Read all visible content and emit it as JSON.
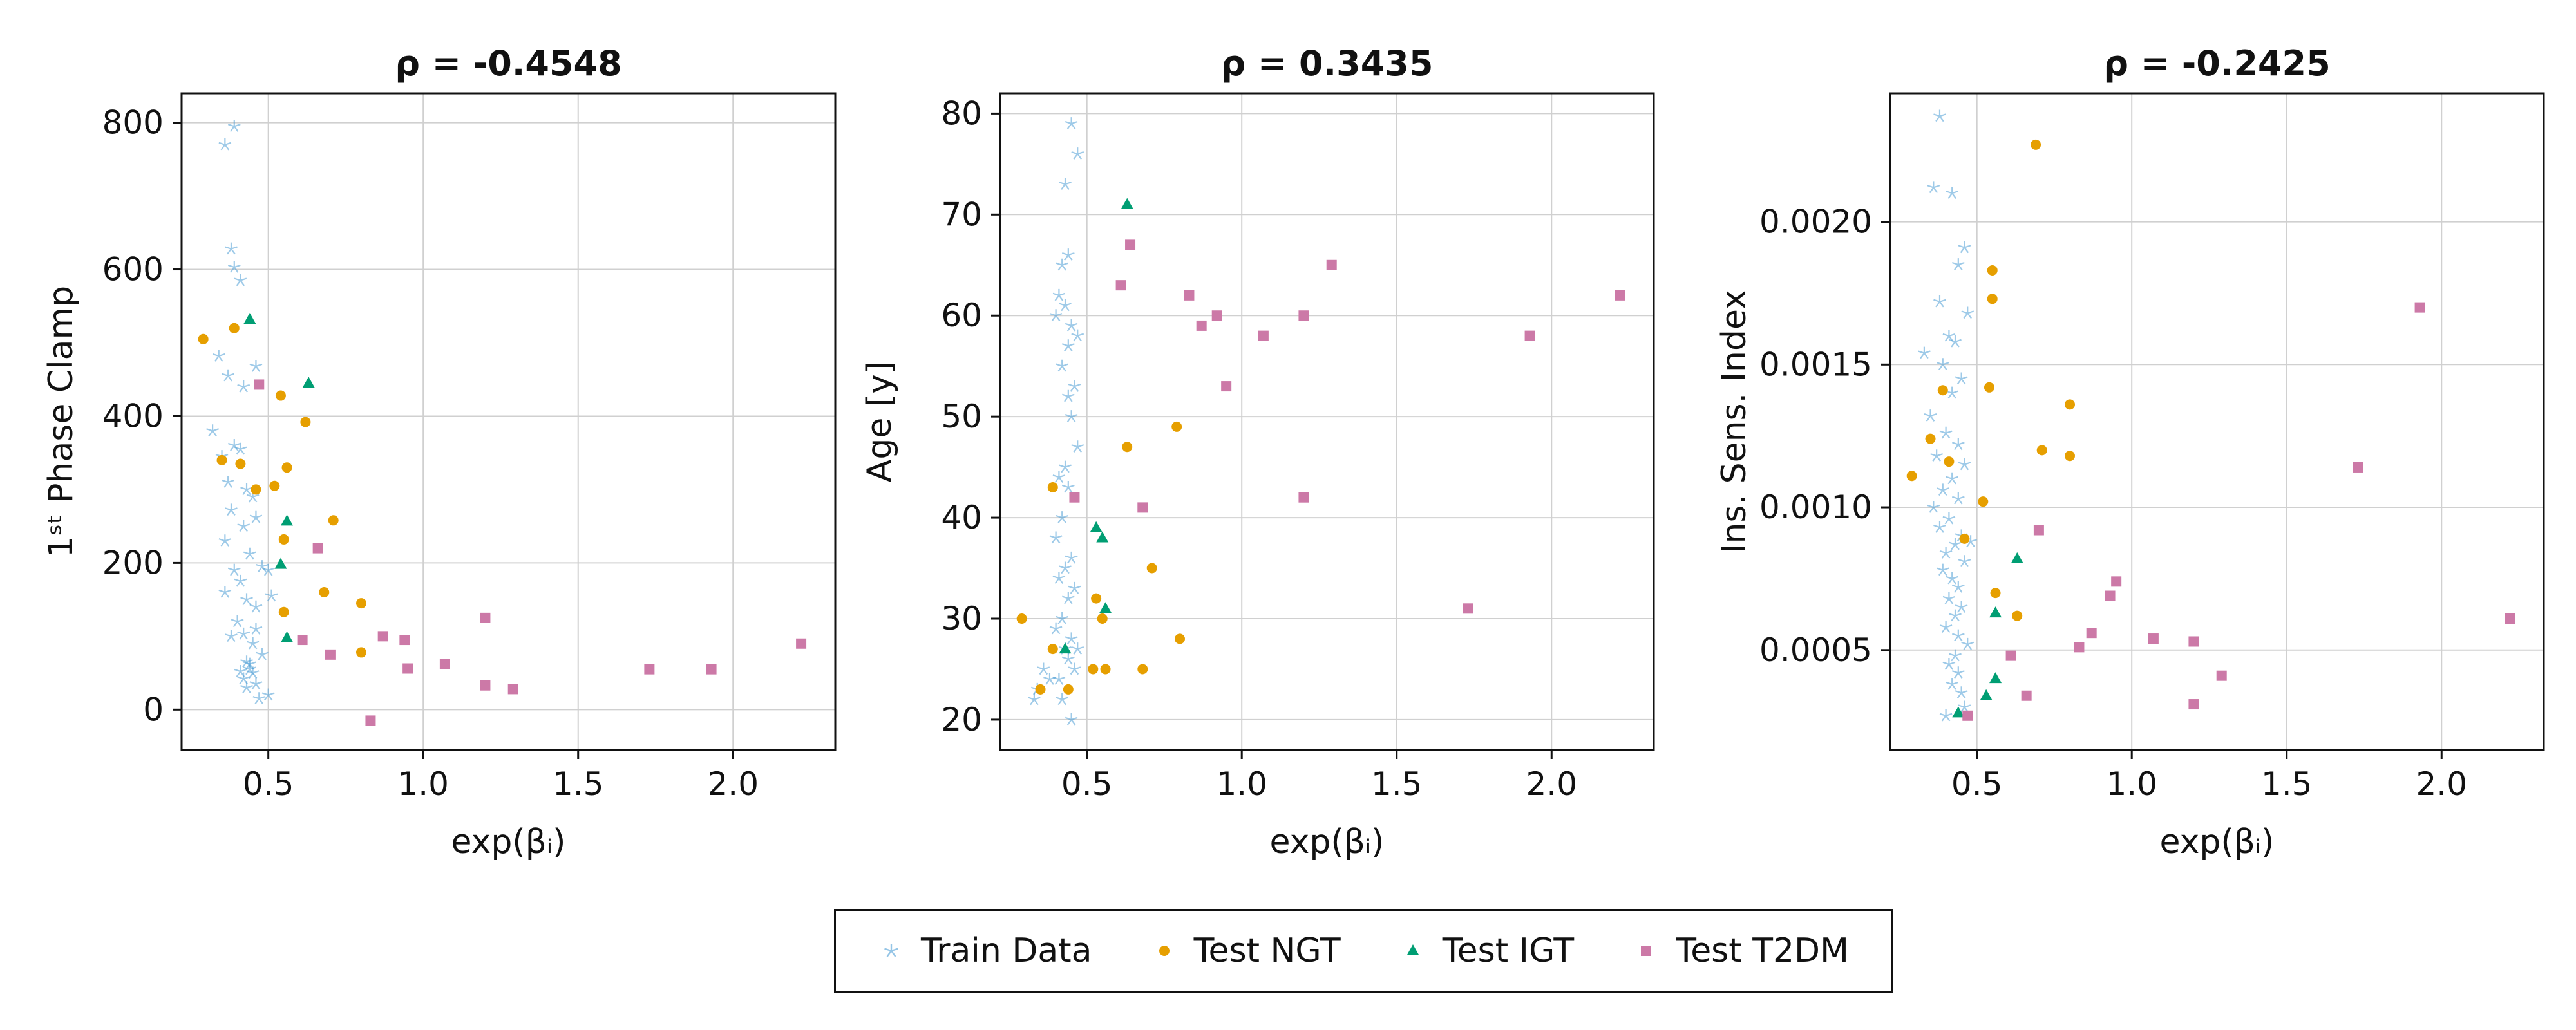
{
  "colors": {
    "train": "#4f9fd6",
    "ngt": "#e69f00",
    "igt": "#009e73",
    "t2dm": "#cc79a7",
    "grid": "#d0d0d0",
    "axis": "#111111"
  },
  "legend": {
    "items": [
      {
        "label": "Train Data",
        "marker": "star",
        "color": "#4f9fd6"
      },
      {
        "label": "Test NGT",
        "marker": "circle",
        "color": "#e69f00"
      },
      {
        "label": "Test IGT",
        "marker": "triangle",
        "color": "#009e73"
      },
      {
        "label": "Test T2DM",
        "marker": "square",
        "color": "#cc79a7"
      }
    ]
  },
  "chart_data": [
    {
      "type": "scatter",
      "title": "ρ = -0.4548",
      "xlabel": "exp(βᵢ)",
      "ylabel": "1ˢᵗ Phase Clamp",
      "xlim": [
        0.22,
        2.33
      ],
      "ylim": [
        -55,
        840
      ],
      "xticks": [
        0.5,
        1.0,
        1.5,
        2.0
      ],
      "xtick_labels": [
        "0.5",
        "1.0",
        "1.5",
        "2.0"
      ],
      "yticks": [
        0,
        200,
        400,
        600,
        800
      ],
      "ytick_labels": [
        "0",
        "200",
        "400",
        "600",
        "800"
      ],
      "grid": true,
      "series": [
        {
          "name": "Train Data",
          "marker": "star",
          "points": [
            [
              0.39,
              795
            ],
            [
              0.36,
              770
            ],
            [
              0.38,
              628
            ],
            [
              0.39,
              603
            ],
            [
              0.41,
              585
            ],
            [
              0.32,
              380
            ],
            [
              0.34,
              482
            ],
            [
              0.37,
              455
            ],
            [
              0.42,
              440
            ],
            [
              0.46,
              468
            ],
            [
              0.35,
              345
            ],
            [
              0.39,
              360
            ],
            [
              0.41,
              355
            ],
            [
              0.43,
              300
            ],
            [
              0.37,
              310
            ],
            [
              0.45,
              290
            ],
            [
              0.38,
              272
            ],
            [
              0.42,
              250
            ],
            [
              0.46,
              262
            ],
            [
              0.36,
              230
            ],
            [
              0.44,
              212
            ],
            [
              0.48,
              195
            ],
            [
              0.39,
              190
            ],
            [
              0.41,
              175
            ],
            [
              0.36,
              160
            ],
            [
              0.43,
              150
            ],
            [
              0.46,
              140
            ],
            [
              0.4,
              120
            ],
            [
              0.42,
              103
            ],
            [
              0.38,
              100
            ],
            [
              0.45,
              90
            ],
            [
              0.43,
              65
            ],
            [
              0.44,
              55
            ],
            [
              0.45,
              50
            ],
            [
              0.42,
              42
            ],
            [
              0.46,
              35
            ],
            [
              0.43,
              30
            ],
            [
              0.47,
              15
            ],
            [
              0.5,
              20
            ],
            [
              0.48,
              75
            ],
            [
              0.5,
              190
            ],
            [
              0.51,
              155
            ],
            [
              0.46,
              110
            ],
            [
              0.44,
              62
            ],
            [
              0.41,
              52
            ]
          ]
        },
        {
          "name": "Test NGT",
          "marker": "circle",
          "points": [
            [
              0.29,
              505
            ],
            [
              0.39,
              520
            ],
            [
              0.54,
              428
            ],
            [
              0.62,
              392
            ],
            [
              0.35,
              340
            ],
            [
              0.41,
              335
            ],
            [
              0.56,
              330
            ],
            [
              0.52,
              305
            ],
            [
              0.46,
              300
            ],
            [
              0.71,
              258
            ],
            [
              0.55,
              232
            ],
            [
              0.68,
              160
            ],
            [
              0.8,
              145
            ],
            [
              0.55,
              133
            ],
            [
              0.8,
              78
            ]
          ]
        },
        {
          "name": "Test IGT",
          "marker": "triangle",
          "points": [
            [
              0.44,
              532
            ],
            [
              0.63,
              445
            ],
            [
              0.56,
              257
            ],
            [
              0.54,
              198
            ],
            [
              0.56,
              98
            ]
          ]
        },
        {
          "name": "Test T2DM",
          "marker": "square",
          "points": [
            [
              0.47,
              443
            ],
            [
              0.66,
              220
            ],
            [
              0.61,
              95
            ],
            [
              0.7,
              75
            ],
            [
              0.87,
              100
            ],
            [
              0.94,
              95
            ],
            [
              0.95,
              56
            ],
            [
              1.07,
              62
            ],
            [
              1.2,
              125
            ],
            [
              1.2,
              33
            ],
            [
              1.29,
              28
            ],
            [
              0.83,
              -15
            ],
            [
              1.73,
              55
            ],
            [
              1.93,
              55
            ],
            [
              2.22,
              90
            ]
          ]
        }
      ]
    },
    {
      "type": "scatter",
      "title": "ρ = 0.3435",
      "xlabel": "exp(βᵢ)",
      "ylabel": "Age [y]",
      "xlim": [
        0.22,
        2.33
      ],
      "ylim": [
        17,
        82
      ],
      "xticks": [
        0.5,
        1.0,
        1.5,
        2.0
      ],
      "xtick_labels": [
        "0.5",
        "1.0",
        "1.5",
        "2.0"
      ],
      "yticks": [
        20,
        30,
        40,
        50,
        60,
        70,
        80
      ],
      "ytick_labels": [
        "20",
        "30",
        "40",
        "50",
        "60",
        "70",
        "80"
      ],
      "grid": true,
      "series": [
        {
          "name": "Train Data",
          "marker": "star",
          "points": [
            [
              0.45,
              79
            ],
            [
              0.47,
              76
            ],
            [
              0.43,
              73
            ],
            [
              0.44,
              66
            ],
            [
              0.42,
              65
            ],
            [
              0.41,
              62
            ],
            [
              0.43,
              61
            ],
            [
              0.4,
              60
            ],
            [
              0.45,
              59
            ],
            [
              0.47,
              58
            ],
            [
              0.44,
              57
            ],
            [
              0.42,
              55
            ],
            [
              0.46,
              53
            ],
            [
              0.44,
              52
            ],
            [
              0.45,
              50
            ],
            [
              0.47,
              47
            ],
            [
              0.43,
              45
            ],
            [
              0.41,
              44
            ],
            [
              0.44,
              43
            ],
            [
              0.42,
              40
            ],
            [
              0.4,
              38
            ],
            [
              0.45,
              36
            ],
            [
              0.43,
              35
            ],
            [
              0.41,
              34
            ],
            [
              0.46,
              33
            ],
            [
              0.44,
              32
            ],
            [
              0.42,
              30
            ],
            [
              0.4,
              29
            ],
            [
              0.45,
              28
            ],
            [
              0.43,
              27
            ],
            [
              0.47,
              27
            ],
            [
              0.44,
              26
            ],
            [
              0.36,
              25
            ],
            [
              0.38,
              24
            ],
            [
              0.34,
              23
            ],
            [
              0.33,
              22
            ],
            [
              0.45,
              20
            ],
            [
              0.42,
              22
            ],
            [
              0.41,
              24
            ],
            [
              0.46,
              25
            ]
          ]
        },
        {
          "name": "Test NGT",
          "marker": "circle",
          "points": [
            [
              0.29,
              30
            ],
            [
              0.39,
              43
            ],
            [
              0.63,
              47
            ],
            [
              0.79,
              49
            ],
            [
              0.71,
              35
            ],
            [
              0.53,
              32
            ],
            [
              0.55,
              30
            ],
            [
              0.39,
              27
            ],
            [
              0.8,
              28
            ],
            [
              0.52,
              25
            ],
            [
              0.56,
              25
            ],
            [
              0.68,
              25
            ],
            [
              0.35,
              23
            ],
            [
              0.44,
              23
            ]
          ]
        },
        {
          "name": "Test IGT",
          "marker": "triangle",
          "points": [
            [
              0.63,
              71
            ],
            [
              0.53,
              39
            ],
            [
              0.55,
              38
            ],
            [
              0.56,
              31
            ],
            [
              0.43,
              27
            ]
          ]
        },
        {
          "name": "Test T2DM",
          "marker": "square",
          "points": [
            [
              0.64,
              67
            ],
            [
              0.61,
              63
            ],
            [
              0.83,
              62
            ],
            [
              0.87,
              59
            ],
            [
              0.92,
              60
            ],
            [
              0.95,
              53
            ],
            [
              1.07,
              58
            ],
            [
              1.2,
              60
            ],
            [
              1.29,
              65
            ],
            [
              0.46,
              42
            ],
            [
              0.68,
              41
            ],
            [
              1.2,
              42
            ],
            [
              1.73,
              31
            ],
            [
              1.93,
              58
            ],
            [
              2.22,
              62
            ]
          ]
        }
      ]
    },
    {
      "type": "scatter",
      "title": "ρ = -0.2425",
      "xlabel": "exp(βᵢ)",
      "ylabel": "Ins. Sens. Index",
      "xlim": [
        0.22,
        2.33
      ],
      "ylim": [
        0.00015,
        0.00245
      ],
      "xticks": [
        0.5,
        1.0,
        1.5,
        2.0
      ],
      "xtick_labels": [
        "0.5",
        "1.0",
        "1.5",
        "2.0"
      ],
      "yticks": [
        0.0005,
        0.001,
        0.0015,
        0.002
      ],
      "ytick_labels": [
        "0.0005",
        "0.0010",
        "0.0015",
        "0.0020"
      ],
      "grid": true,
      "series": [
        {
          "name": "Train Data",
          "marker": "star",
          "points": [
            [
              0.38,
              0.00237
            ],
            [
              0.36,
              0.00212
            ],
            [
              0.42,
              0.0021
            ],
            [
              0.46,
              0.00191
            ],
            [
              0.44,
              0.00185
            ],
            [
              0.38,
              0.00172
            ],
            [
              0.47,
              0.00168
            ],
            [
              0.41,
              0.0016
            ],
            [
              0.43,
              0.00158
            ],
            [
              0.33,
              0.00154
            ],
            [
              0.39,
              0.0015
            ],
            [
              0.45,
              0.00145
            ],
            [
              0.42,
              0.0014
            ],
            [
              0.35,
              0.00132
            ],
            [
              0.4,
              0.00126
            ],
            [
              0.44,
              0.00122
            ],
            [
              0.37,
              0.00118
            ],
            [
              0.46,
              0.00115
            ],
            [
              0.42,
              0.0011
            ],
            [
              0.39,
              0.00106
            ],
            [
              0.44,
              0.00103
            ],
            [
              0.36,
              0.001
            ],
            [
              0.41,
              0.00096
            ],
            [
              0.38,
              0.00093
            ],
            [
              0.45,
              0.0009
            ],
            [
              0.43,
              0.00087
            ],
            [
              0.4,
              0.00084
            ],
            [
              0.46,
              0.00081
            ],
            [
              0.39,
              0.00078
            ],
            [
              0.42,
              0.00075
            ],
            [
              0.44,
              0.00072
            ],
            [
              0.41,
              0.00068
            ],
            [
              0.45,
              0.00065
            ],
            [
              0.43,
              0.00062
            ],
            [
              0.4,
              0.00058
            ],
            [
              0.44,
              0.00055
            ],
            [
              0.47,
              0.00052
            ],
            [
              0.43,
              0.00048
            ],
            [
              0.41,
              0.00045
            ],
            [
              0.44,
              0.00042
            ],
            [
              0.42,
              0.00038
            ],
            [
              0.45,
              0.00035
            ],
            [
              0.46,
              0.0003
            ],
            [
              0.4,
              0.00027
            ],
            [
              0.48,
              0.00088
            ]
          ]
        },
        {
          "name": "Test NGT",
          "marker": "circle",
          "points": [
            [
              0.69,
              0.00227
            ],
            [
              0.55,
              0.00183
            ],
            [
              0.55,
              0.00173
            ],
            [
              0.39,
              0.00141
            ],
            [
              0.54,
              0.00142
            ],
            [
              0.8,
              0.00136
            ],
            [
              0.35,
              0.00124
            ],
            [
              0.71,
              0.0012
            ],
            [
              0.8,
              0.00118
            ],
            [
              0.41,
              0.00116
            ],
            [
              0.29,
              0.00111
            ],
            [
              0.52,
              0.00102
            ],
            [
              0.46,
              0.00089
            ],
            [
              0.56,
              0.0007
            ],
            [
              0.63,
              0.00062
            ]
          ]
        },
        {
          "name": "Test IGT",
          "marker": "triangle",
          "points": [
            [
              0.63,
              0.00082
            ],
            [
              0.56,
              0.00063
            ],
            [
              0.56,
              0.0004
            ],
            [
              0.53,
              0.00034
            ],
            [
              0.44,
              0.00028
            ]
          ]
        },
        {
          "name": "Test T2DM",
          "marker": "square",
          "points": [
            [
              1.93,
              0.0017
            ],
            [
              1.73,
              0.00114
            ],
            [
              0.7,
              0.00092
            ],
            [
              0.95,
              0.00074
            ],
            [
              0.93,
              0.00069
            ],
            [
              2.22,
              0.00061
            ],
            [
              0.87,
              0.00056
            ],
            [
              1.07,
              0.00054
            ],
            [
              1.2,
              0.00053
            ],
            [
              0.83,
              0.00051
            ],
            [
              0.61,
              0.00048
            ],
            [
              1.29,
              0.00041
            ],
            [
              0.66,
              0.00034
            ],
            [
              1.2,
              0.00031
            ],
            [
              0.47,
              0.00027
            ]
          ]
        }
      ]
    }
  ]
}
